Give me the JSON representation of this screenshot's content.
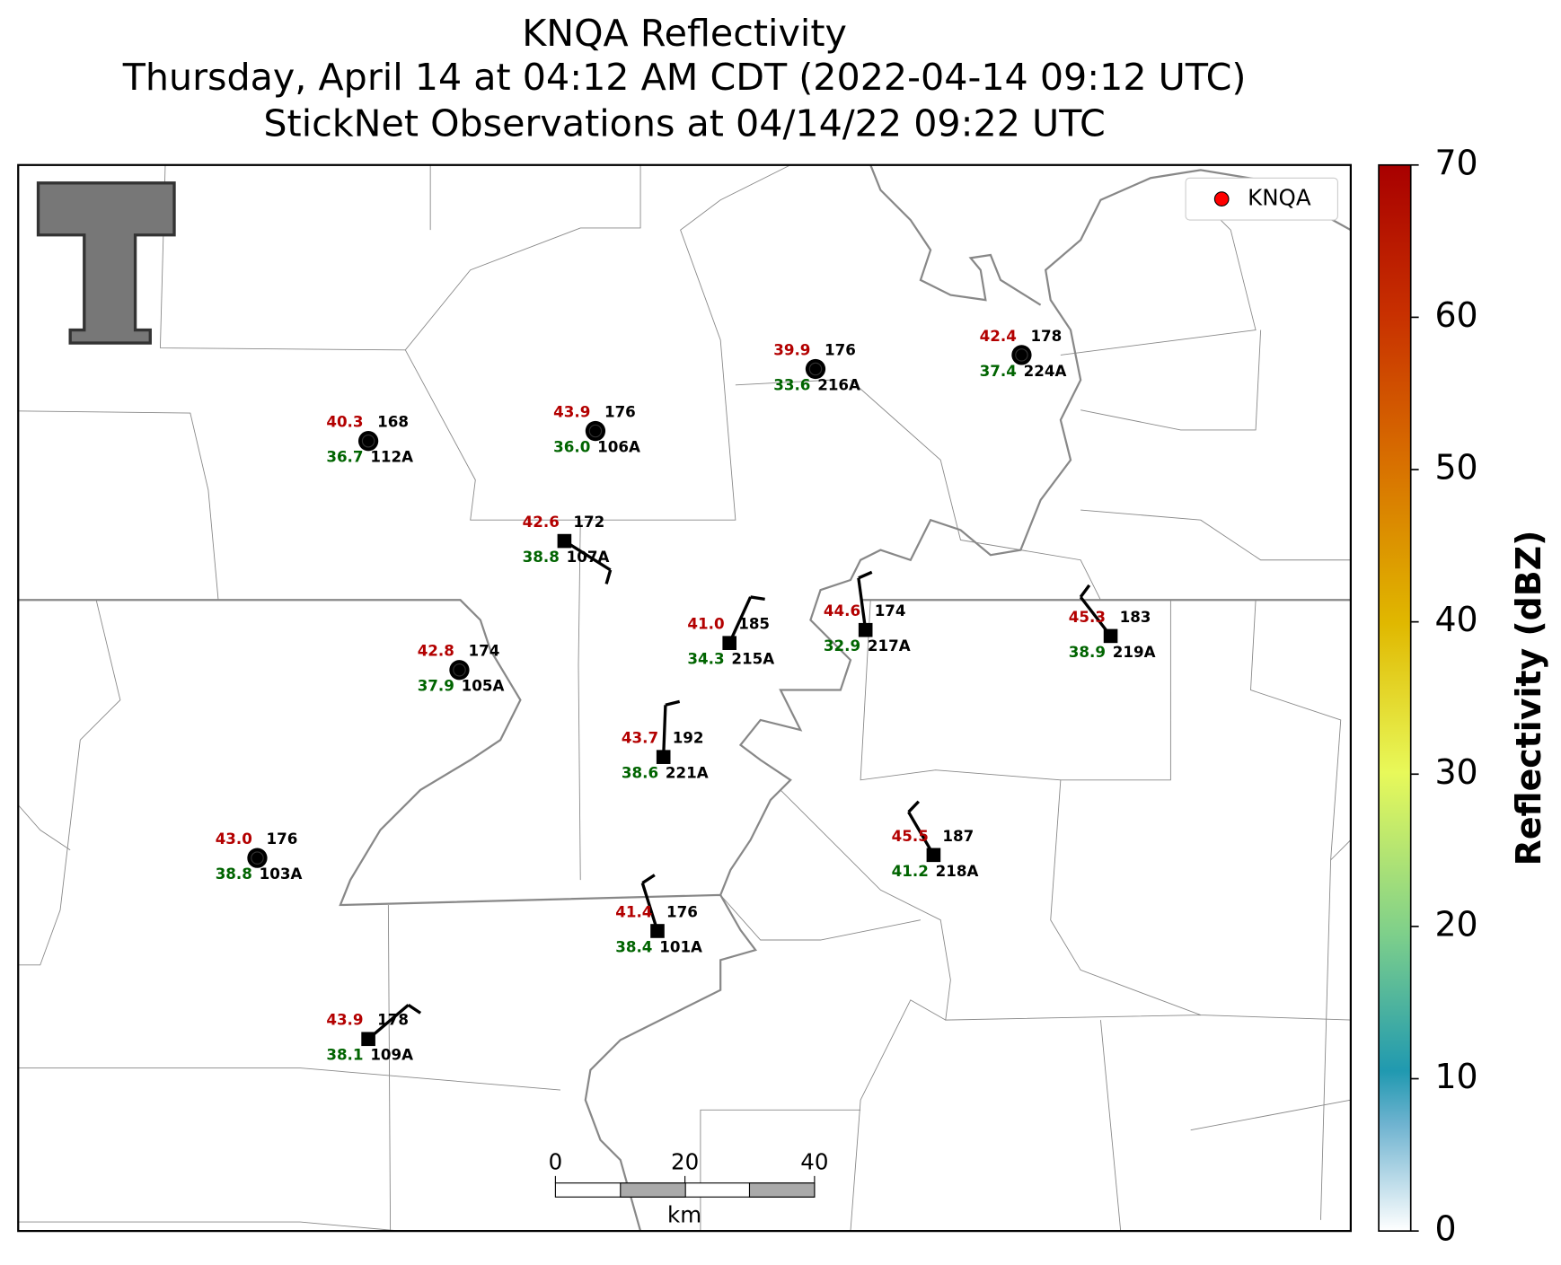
{
  "title": [
    "KNQA Reflectivity",
    "Thursday, April 14 at 04:12 AM CDT (2022-04-14 09:12 UTC)",
    "StickNet Observations at 04/14/22 09:22 UTC"
  ],
  "legend": [
    {
      "name": "KNQA",
      "color": "#ff0000"
    }
  ],
  "colors": {
    "temperature": "#b30000",
    "dewpoint": "#006400",
    "pressure": "#000000"
  },
  "stations": [
    {
      "id": "112A",
      "temperature": "40.3",
      "dewpoint": "36.7",
      "pressure": "168"
    },
    {
      "id": "106A",
      "temperature": "43.9",
      "dewpoint": "36.0",
      "pressure": "176"
    },
    {
      "id": "216A",
      "temperature": "39.9",
      "dewpoint": "33.6",
      "pressure": "176"
    },
    {
      "id": "224A",
      "temperature": "42.4",
      "dewpoint": "37.4",
      "pressure": "178"
    },
    {
      "id": "107A",
      "temperature": "42.6",
      "dewpoint": "38.8",
      "pressure": "172"
    },
    {
      "id": "215A",
      "temperature": "41.0",
      "dewpoint": "34.3",
      "pressure": "185"
    },
    {
      "id": "217A",
      "temperature": "44.6",
      "dewpoint": "32.9",
      "pressure": "174"
    },
    {
      "id": "219A",
      "temperature": "45.3",
      "dewpoint": "38.9",
      "pressure": "183"
    },
    {
      "id": "105A",
      "temperature": "42.8",
      "dewpoint": "37.9",
      "pressure": "174"
    },
    {
      "id": "221A",
      "temperature": "43.7",
      "dewpoint": "38.6",
      "pressure": "192"
    },
    {
      "id": "103A",
      "temperature": "43.0",
      "dewpoint": "38.8",
      "pressure": "176"
    },
    {
      "id": "218A",
      "temperature": "45.5",
      "dewpoint": "41.2",
      "pressure": "187"
    },
    {
      "id": "101A",
      "temperature": "41.4",
      "dewpoint": "38.4",
      "pressure": "176"
    },
    {
      "id": "109A",
      "temperature": "43.9",
      "dewpoint": "38.1",
      "pressure": "178"
    }
  ],
  "colorbar": {
    "label": "Reflectivity (dBZ)",
    "lim": [
      0,
      70
    ],
    "ticks": [
      0,
      10,
      20,
      30,
      40,
      50,
      60,
      70
    ]
  },
  "scale_bar": {
    "ticks": [
      0,
      20,
      40
    ],
    "unit": "km"
  }
}
